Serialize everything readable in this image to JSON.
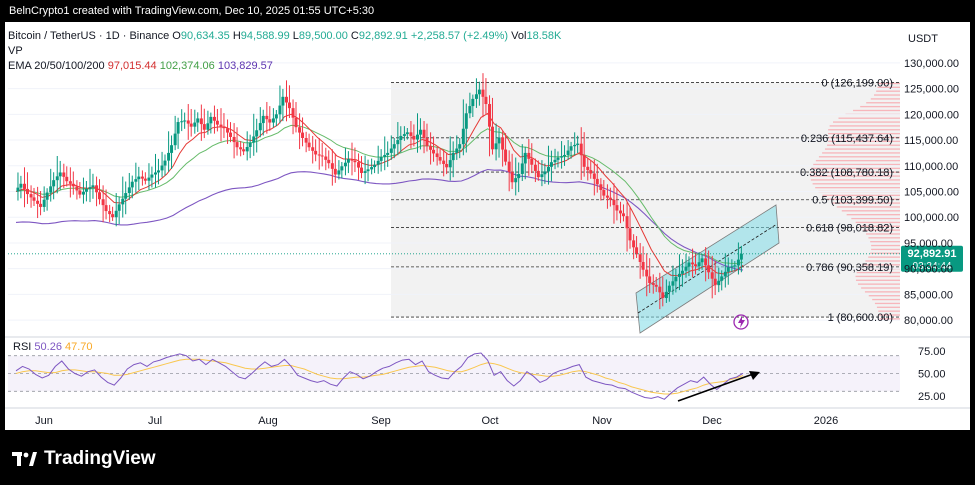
{
  "attribution": "BelnCrypto1 created with TradingView.com, Dec 10, 2025 01:55 UTC+5:30",
  "legend": {
    "symbol": "Bitcoin / TetherUS · 1D · Binance",
    "o_label": "O",
    "o": "90,634.35",
    "h_label": "H",
    "h": "94,588.99",
    "l_label": "L",
    "l": "89,500.00",
    "c_label": "C",
    "c": "92,892.91",
    "change": "+2,258.57 (+2.49%)",
    "vol_label": "Vol",
    "vol": "18.58K",
    "vp": "VP",
    "ema_label": "EMA 20/50/100/200",
    "ema20": "97,015.44",
    "ema50": "102,374.06",
    "ema100": "103,829.57"
  },
  "rsi_legend": {
    "label": "RSI",
    "v1": "50.26",
    "v2": "47.70"
  },
  "currency": "USDT",
  "last_price": {
    "price": "92,892.91",
    "countdown": "03:34:44"
  },
  "footer": {
    "brand": "TradingView"
  },
  "colors": {
    "up": "#089981",
    "down": "#f23645",
    "ema20": "#e53935",
    "ema50": "#66bb6a",
    "ema100": "#7e57c2",
    "rsi": "#7e57c2",
    "rsi_ma": "#f9c74f",
    "channel": "#7fdbe6",
    "fib": "#333333",
    "vp": "#f7a6ad"
  },
  "chart_data": {
    "type": "candlestick",
    "x_labels": [
      "Jun",
      "Jul",
      "Aug",
      "Sep",
      "Oct",
      "Nov",
      "Dec",
      "2026"
    ],
    "y_ticks": [
      130000,
      125000,
      120000,
      115000,
      110000,
      105000,
      100000,
      95000,
      90000,
      85000,
      80000
    ],
    "y_tick_labels": [
      "130,000.00",
      "125,000.00",
      "120,000.00",
      "115,000.00",
      "110,000.00",
      "105,000.00",
      "100,000.00",
      "95,000.00",
      "90,000.00",
      "85,000.00",
      "80,000.00"
    ],
    "ylim": [
      77500,
      132500
    ],
    "price_path": [
      105000,
      106500,
      104500,
      103200,
      102000,
      104800,
      107200,
      108700,
      107000,
      106000,
      104400,
      105500,
      106200,
      103500,
      101200,
      100000,
      102500,
      104700,
      106900,
      107900,
      107100,
      108300,
      109100,
      111000,
      114000,
      118500,
      118800,
      117600,
      119200,
      117000,
      119500,
      118000,
      117300,
      115600,
      113600,
      112800,
      114500,
      116900,
      119700,
      118400,
      120000,
      123400,
      121200,
      117500,
      115400,
      113600,
      112200,
      111800,
      110500,
      108300,
      109900,
      111300,
      110700,
      108600,
      109300,
      110200,
      111700,
      112500,
      114200,
      115800,
      116500,
      115100,
      117000,
      113800,
      112400,
      111000,
      109700,
      112500,
      114200,
      120200,
      123000,
      124800,
      122000,
      113200,
      115500,
      110800,
      106800,
      108400,
      112500,
      110200,
      107800,
      108900,
      110700,
      111600,
      112100,
      113800,
      114300,
      109800,
      108500,
      106400,
      104200,
      103400,
      101300,
      100200,
      95500,
      92800,
      89800,
      87200,
      86500,
      84300,
      86700,
      88400,
      89600,
      91200,
      90500,
      92000,
      89300,
      86800,
      88500,
      90300,
      90634,
      92893
    ],
    "ema": [
      {
        "name": "EMA 20",
        "values_sample": [
          97015.44
        ]
      },
      {
        "name": "EMA 50",
        "values_sample": [
          102374.06
        ]
      },
      {
        "name": "EMA 100",
        "values_sample": [
          103829.57
        ]
      }
    ],
    "fib_levels": [
      {
        "label": "0 (126,199.00)",
        "value": 126199
      },
      {
        "label": "0.236 (115,437.64)",
        "value": 115437.64
      },
      {
        "label": "0.382 (108,780.18)",
        "value": 108780.18
      },
      {
        "label": "0.5 (103,399.50)",
        "value": 103399.5
      },
      {
        "label": "0.618 (98,018.82)",
        "value": 98018.82
      },
      {
        "label": "0.786 (90,358.19)",
        "value": 90358.19
      },
      {
        "label": "1 (80,600.00)",
        "value": 80600
      }
    ],
    "rsi_ticks": [
      75,
      50,
      25
    ],
    "rsi_tick_labels": [
      "75.00",
      "50.00",
      "25.00"
    ],
    "rsi_path": [
      53,
      58,
      55,
      49,
      45,
      48,
      58,
      64,
      55,
      50,
      47,
      52,
      54,
      46,
      40,
      37,
      45,
      55,
      60,
      62,
      58,
      63,
      65,
      68,
      70,
      72,
      70,
      64,
      66,
      60,
      66,
      62,
      58,
      52,
      46,
      44,
      50,
      57,
      63,
      58,
      60,
      66,
      58,
      48,
      45,
      42,
      40,
      42,
      38,
      36,
      45,
      52,
      49,
      44,
      47,
      52,
      56,
      58,
      62,
      65,
      66,
      60,
      64,
      52,
      48,
      45,
      44,
      52,
      58,
      68,
      72,
      73,
      65,
      48,
      52,
      42,
      36,
      42,
      52,
      47,
      40,
      43,
      50,
      53,
      55,
      58,
      60,
      46,
      42,
      40,
      38,
      37,
      34,
      33,
      29,
      26,
      23,
      22,
      24,
      21,
      28,
      34,
      38,
      42,
      40,
      46,
      38,
      32,
      38,
      44,
      46,
      50.26
    ],
    "rsi_ma_path": [
      50,
      52,
      53,
      53,
      52,
      51,
      51,
      53,
      54,
      54,
      53,
      52,
      52,
      51,
      50,
      48,
      48,
      49,
      51,
      53,
      55,
      57,
      59,
      61,
      63,
      65,
      66,
      66,
      66,
      65,
      64,
      63,
      62,
      60,
      58,
      56,
      55,
      55,
      56,
      57,
      58,
      59,
      59,
      57,
      55,
      52,
      49,
      47,
      45,
      44,
      44,
      45,
      46,
      46,
      47,
      48,
      49,
      51,
      53,
      55,
      57,
      58,
      59,
      58,
      57,
      55,
      53,
      52,
      52,
      54,
      57,
      60,
      62,
      61,
      59,
      56,
      53,
      51,
      50,
      49,
      48,
      47,
      47,
      48,
      50,
      52,
      53,
      52,
      50,
      48,
      45,
      43,
      40,
      38,
      35,
      33,
      31,
      29,
      28,
      27,
      27,
      28,
      30,
      32,
      34,
      37,
      39,
      40,
      41,
      43,
      45,
      47.7
    ],
    "volume_profile_note": "horizontal volume-by-price histogram on right"
  }
}
